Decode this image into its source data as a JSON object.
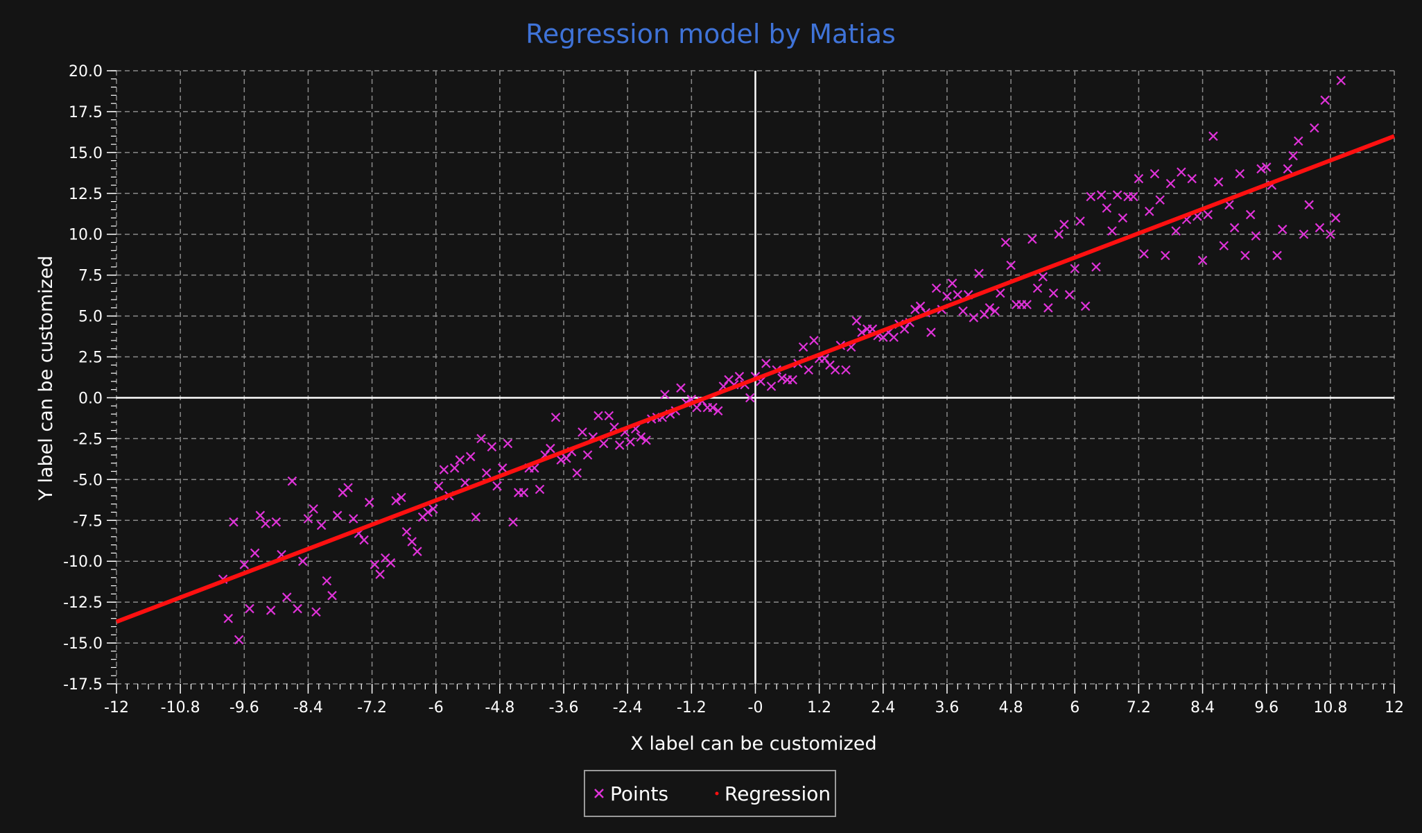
{
  "colors": {
    "background": "#141414",
    "title": "#3f73d8",
    "text": "#ffffff",
    "grid": "#8a8a8a",
    "axis_zero": "#ffffff",
    "points": "#e033d9",
    "regression": "#ff1010",
    "legend_border": "#9a9a9a"
  },
  "chart_data": {
    "type": "scatter",
    "title": "Regression model by Matias",
    "xlabel": "X label can be customized",
    "ylabel": "Y label can be customized",
    "xlim": [
      -12,
      12
    ],
    "ylim": [
      -17.5,
      20
    ],
    "grid": true,
    "legend_position": "bottom-center",
    "x_ticks": [
      "-12",
      "-10.8",
      "-9.6",
      "-8.4",
      "-7.2",
      "-6",
      "-4.8",
      "-3.6",
      "-2.4",
      "-1.2",
      "-0",
      "1.2",
      "2.4",
      "3.6",
      "4.8",
      "6",
      "7.2",
      "8.4",
      "9.6",
      "10.8",
      "12"
    ],
    "y_ticks": [
      "20.0",
      "17.5",
      "15.0",
      "12.5",
      "10.0",
      "7.5",
      "5.0",
      "2.5",
      "0.0",
      "-2.5",
      "-5.0",
      "-7.5",
      "-10.0",
      "-12.5",
      "-15.0",
      "-17.5"
    ],
    "legend": [
      "Points",
      "Regression"
    ],
    "series": [
      {
        "name": "Points",
        "marker": "x",
        "points": [
          [
            -10.0,
            -11.1
          ],
          [
            -9.9,
            -13.5
          ],
          [
            -9.8,
            -7.6
          ],
          [
            -9.7,
            -14.8
          ],
          [
            -9.6,
            -10.2
          ],
          [
            -9.5,
            -12.9
          ],
          [
            -9.4,
            -9.5
          ],
          [
            -9.3,
            -7.2
          ],
          [
            -9.2,
            -7.7
          ],
          [
            -9.1,
            -13.0
          ],
          [
            -9.0,
            -7.6
          ],
          [
            -8.9,
            -9.6
          ],
          [
            -8.8,
            -12.2
          ],
          [
            -8.7,
            -5.1
          ],
          [
            -8.6,
            -12.9
          ],
          [
            -8.5,
            -10.0
          ],
          [
            -8.4,
            -7.4
          ],
          [
            -8.3,
            -6.8
          ],
          [
            -8.25,
            -13.1
          ],
          [
            -8.15,
            -7.8
          ],
          [
            -8.05,
            -11.2
          ],
          [
            -7.95,
            -12.1
          ],
          [
            -7.85,
            -7.2
          ],
          [
            -7.75,
            -5.8
          ],
          [
            -7.65,
            -5.5
          ],
          [
            -7.55,
            -7.4
          ],
          [
            -7.45,
            -8.3
          ],
          [
            -7.35,
            -8.7
          ],
          [
            -7.25,
            -6.4
          ],
          [
            -7.15,
            -10.2
          ],
          [
            -7.05,
            -10.8
          ],
          [
            -6.95,
            -9.8
          ],
          [
            -6.85,
            -10.1
          ],
          [
            -6.75,
            -6.3
          ],
          [
            -6.65,
            -6.1
          ],
          [
            -6.55,
            -8.2
          ],
          [
            -6.45,
            -8.8
          ],
          [
            -6.35,
            -9.4
          ],
          [
            -6.25,
            -7.3
          ],
          [
            -6.15,
            -7.0
          ],
          [
            -6.05,
            -6.8
          ],
          [
            -5.95,
            -5.4
          ],
          [
            -5.85,
            -4.4
          ],
          [
            -5.75,
            -6.0
          ],
          [
            -5.65,
            -4.3
          ],
          [
            -5.55,
            -3.8
          ],
          [
            -5.45,
            -5.2
          ],
          [
            -5.35,
            -3.6
          ],
          [
            -5.25,
            -7.3
          ],
          [
            -5.15,
            -2.5
          ],
          [
            -5.05,
            -4.6
          ],
          [
            -4.95,
            -3.0
          ],
          [
            -4.85,
            -5.4
          ],
          [
            -4.75,
            -4.3
          ],
          [
            -4.65,
            -2.8
          ],
          [
            -4.55,
            -7.6
          ],
          [
            -4.45,
            -5.8
          ],
          [
            -4.35,
            -5.8
          ],
          [
            -4.25,
            -4.3
          ],
          [
            -4.15,
            -4.3
          ],
          [
            -4.05,
            -5.6
          ],
          [
            -3.95,
            -3.5
          ],
          [
            -3.85,
            -3.1
          ],
          [
            -3.75,
            -1.2
          ],
          [
            -3.65,
            -3.8
          ],
          [
            -3.55,
            -3.7
          ],
          [
            -3.45,
            -3.3
          ],
          [
            -3.35,
            -4.6
          ],
          [
            -3.25,
            -2.1
          ],
          [
            -3.15,
            -3.5
          ],
          [
            -3.05,
            -2.4
          ],
          [
            -2.95,
            -1.1
          ],
          [
            -2.85,
            -2.8
          ],
          [
            -2.75,
            -1.1
          ],
          [
            -2.65,
            -1.8
          ],
          [
            -2.55,
            -2.9
          ],
          [
            -2.45,
            -2.1
          ],
          [
            -2.35,
            -2.7
          ],
          [
            -2.25,
            -1.9
          ],
          [
            -2.15,
            -2.4
          ],
          [
            -2.05,
            -2.6
          ],
          [
            -1.95,
            -1.3
          ],
          [
            -1.85,
            -1.2
          ],
          [
            -1.75,
            -1.2
          ],
          [
            -1.7,
            0.2
          ],
          [
            -1.6,
            -1.0
          ],
          [
            -1.5,
            -0.8
          ],
          [
            -1.4,
            0.6
          ],
          [
            -1.3,
            -0.3
          ],
          [
            -1.2,
            -0.1
          ],
          [
            -1.1,
            -0.6
          ],
          [
            -1.0,
            -0.2
          ],
          [
            -0.9,
            -0.6
          ],
          [
            -0.8,
            -0.6
          ],
          [
            -0.7,
            -0.8
          ],
          [
            -0.6,
            0.7
          ],
          [
            -0.5,
            1.1
          ],
          [
            -0.4,
            0.8
          ],
          [
            -0.3,
            1.3
          ],
          [
            -0.2,
            0.8
          ],
          [
            -0.1,
            0.0
          ],
          [
            0.0,
            1.3
          ],
          [
            0.1,
            1.0
          ],
          [
            0.2,
            2.1
          ],
          [
            0.3,
            0.7
          ],
          [
            0.4,
            1.7
          ],
          [
            0.5,
            1.2
          ],
          [
            0.6,
            1.1
          ],
          [
            0.7,
            1.1
          ],
          [
            0.8,
            2.1
          ],
          [
            0.9,
            3.1
          ],
          [
            1.0,
            1.7
          ],
          [
            1.1,
            3.5
          ],
          [
            1.2,
            2.4
          ],
          [
            1.3,
            2.4
          ],
          [
            1.4,
            2.0
          ],
          [
            1.5,
            1.7
          ],
          [
            1.6,
            3.2
          ],
          [
            1.7,
            1.7
          ],
          [
            1.8,
            3.1
          ],
          [
            1.9,
            4.7
          ],
          [
            2.0,
            4.0
          ],
          [
            2.1,
            4.2
          ],
          [
            2.2,
            4.2
          ],
          [
            2.3,
            3.8
          ],
          [
            2.4,
            3.7
          ],
          [
            2.5,
            4.0
          ],
          [
            2.6,
            3.7
          ],
          [
            2.7,
            4.5
          ],
          [
            2.8,
            4.2
          ],
          [
            2.9,
            4.6
          ],
          [
            3.0,
            5.4
          ],
          [
            3.1,
            5.6
          ],
          [
            3.2,
            5.2
          ],
          [
            3.3,
            4.0
          ],
          [
            3.4,
            6.7
          ],
          [
            3.5,
            5.4
          ],
          [
            3.6,
            6.2
          ],
          [
            3.7,
            7.0
          ],
          [
            3.8,
            6.3
          ],
          [
            3.9,
            5.3
          ],
          [
            4.0,
            6.3
          ],
          [
            4.1,
            4.9
          ],
          [
            4.2,
            7.6
          ],
          [
            4.3,
            5.1
          ],
          [
            4.4,
            5.5
          ],
          [
            4.5,
            5.3
          ],
          [
            4.6,
            6.4
          ],
          [
            4.7,
            9.5
          ],
          [
            4.8,
            8.1
          ],
          [
            4.9,
            5.7
          ],
          [
            5.0,
            5.7
          ],
          [
            5.1,
            5.7
          ],
          [
            5.2,
            9.7
          ],
          [
            5.3,
            6.7
          ],
          [
            5.4,
            7.4
          ],
          [
            5.5,
            5.5
          ],
          [
            5.6,
            6.4
          ],
          [
            5.7,
            10.0
          ],
          [
            5.8,
            10.6
          ],
          [
            5.9,
            6.3
          ],
          [
            6.0,
            7.9
          ],
          [
            6.1,
            10.8
          ],
          [
            6.2,
            5.6
          ],
          [
            6.3,
            12.3
          ],
          [
            6.4,
            8.0
          ],
          [
            6.5,
            12.4
          ],
          [
            6.6,
            11.6
          ],
          [
            6.7,
            10.2
          ],
          [
            6.8,
            12.4
          ],
          [
            6.9,
            11.0
          ],
          [
            7.0,
            12.3
          ],
          [
            7.1,
            12.3
          ],
          [
            7.2,
            13.4
          ],
          [
            7.3,
            8.8
          ],
          [
            7.4,
            11.4
          ],
          [
            7.5,
            13.7
          ],
          [
            7.6,
            12.1
          ],
          [
            7.7,
            8.7
          ],
          [
            7.8,
            13.1
          ],
          [
            7.9,
            10.2
          ],
          [
            8.0,
            13.8
          ],
          [
            8.1,
            10.9
          ],
          [
            8.2,
            13.4
          ],
          [
            8.3,
            11.1
          ],
          [
            8.4,
            8.4
          ],
          [
            8.5,
            11.2
          ],
          [
            8.6,
            16.0
          ],
          [
            8.7,
            13.2
          ],
          [
            8.8,
            9.3
          ],
          [
            8.9,
            11.8
          ],
          [
            9.0,
            10.4
          ],
          [
            9.1,
            13.7
          ],
          [
            9.2,
            8.7
          ],
          [
            9.3,
            11.2
          ],
          [
            9.4,
            9.9
          ],
          [
            9.5,
            14.0
          ],
          [
            9.6,
            14.1
          ],
          [
            9.7,
            13.0
          ],
          [
            9.8,
            8.7
          ],
          [
            9.9,
            10.3
          ],
          [
            10.0,
            14.0
          ],
          [
            10.1,
            14.8
          ],
          [
            10.2,
            15.7
          ],
          [
            10.3,
            10.0
          ],
          [
            10.4,
            11.8
          ],
          [
            10.5,
            16.5
          ],
          [
            10.6,
            10.4
          ],
          [
            10.7,
            18.2
          ],
          [
            10.8,
            10.0
          ],
          [
            10.9,
            11.0
          ],
          [
            11.0,
            19.4
          ]
        ]
      },
      {
        "name": "Regression",
        "marker": "line",
        "points": [
          [
            -12,
            -13.7
          ],
          [
            12,
            16.0
          ]
        ]
      }
    ]
  }
}
